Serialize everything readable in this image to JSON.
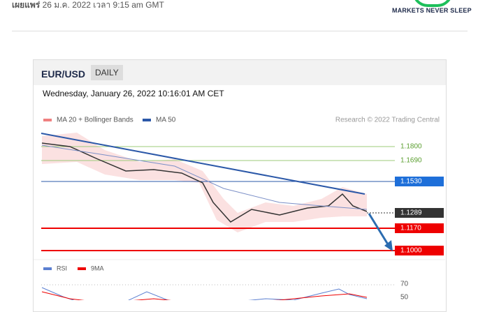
{
  "header": {
    "byline": "เผยแพร่",
    "date": "26 ม.ค. 2022 เวลา 9:15 am GMT",
    "logo_tagline": "MARKETS NEVER SLEEP"
  },
  "chart": {
    "symbol": "EUR/USD",
    "period": "DAILY",
    "timestamp": "Wednesday, January 26, 2022 10:16:01 AM CET",
    "legend": [
      "MA 20 + Bollinger Bands",
      "MA 50"
    ],
    "credit": "Research © 2022 Trading Central",
    "levels": [
      "1.1800",
      "1.1690",
      "1.1530",
      "1.1289",
      "1.1170",
      "1.1000"
    ],
    "rsi_legend": [
      "RSI",
      "9MA"
    ],
    "rsi_ticks": [
      "70",
      "50"
    ]
  }
}
